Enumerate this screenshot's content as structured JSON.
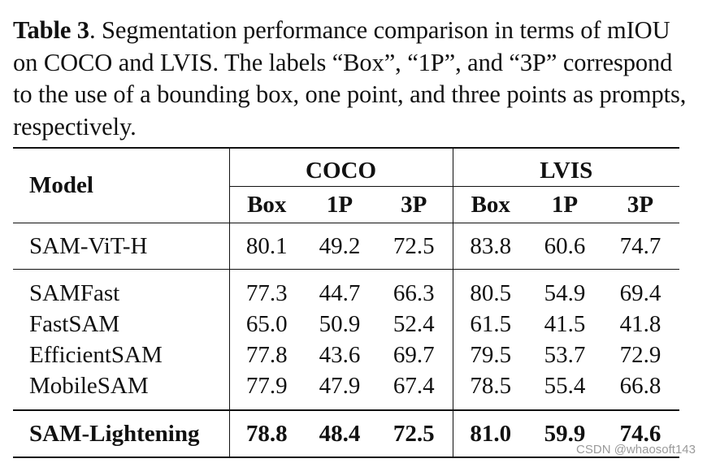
{
  "caption": {
    "label": "Table 3",
    "text": ". Segmentation performance comparison in terms of mIOU on COCO and LVIS. The labels “Box”, “1P”, and “3P” correspond to the use of a bounding box, one point, and three points as prompts, respectively."
  },
  "table": {
    "model_header": "Model",
    "groups": [
      "COCO",
      "LVIS"
    ],
    "subheaders": [
      "Box",
      "1P",
      "3P",
      "Box",
      "1P",
      "3P"
    ],
    "rows": [
      {
        "model": "SAM-ViT-H",
        "values": [
          "80.1",
          "49.2",
          "72.5",
          "83.8",
          "60.6",
          "74.7"
        ]
      },
      {
        "model": "SAMFast",
        "values": [
          "77.3",
          "44.7",
          "66.3",
          "80.5",
          "54.9",
          "69.4"
        ]
      },
      {
        "model": "FastSAM",
        "values": [
          "65.0",
          "50.9",
          "52.4",
          "61.5",
          "41.5",
          "41.8"
        ]
      },
      {
        "model": "EfficientSAM",
        "values": [
          "77.8",
          "43.6",
          "69.7",
          "79.5",
          "53.7",
          "72.9"
        ]
      },
      {
        "model": "MobileSAM",
        "values": [
          "77.9",
          "47.9",
          "67.4",
          "78.5",
          "55.4",
          "66.8"
        ]
      },
      {
        "model": "SAM-Lightening",
        "values": [
          "78.8",
          "48.4",
          "72.5",
          "81.0",
          "59.9",
          "74.6"
        ]
      }
    ]
  },
  "watermark": "CSDN @whaosoft143"
}
